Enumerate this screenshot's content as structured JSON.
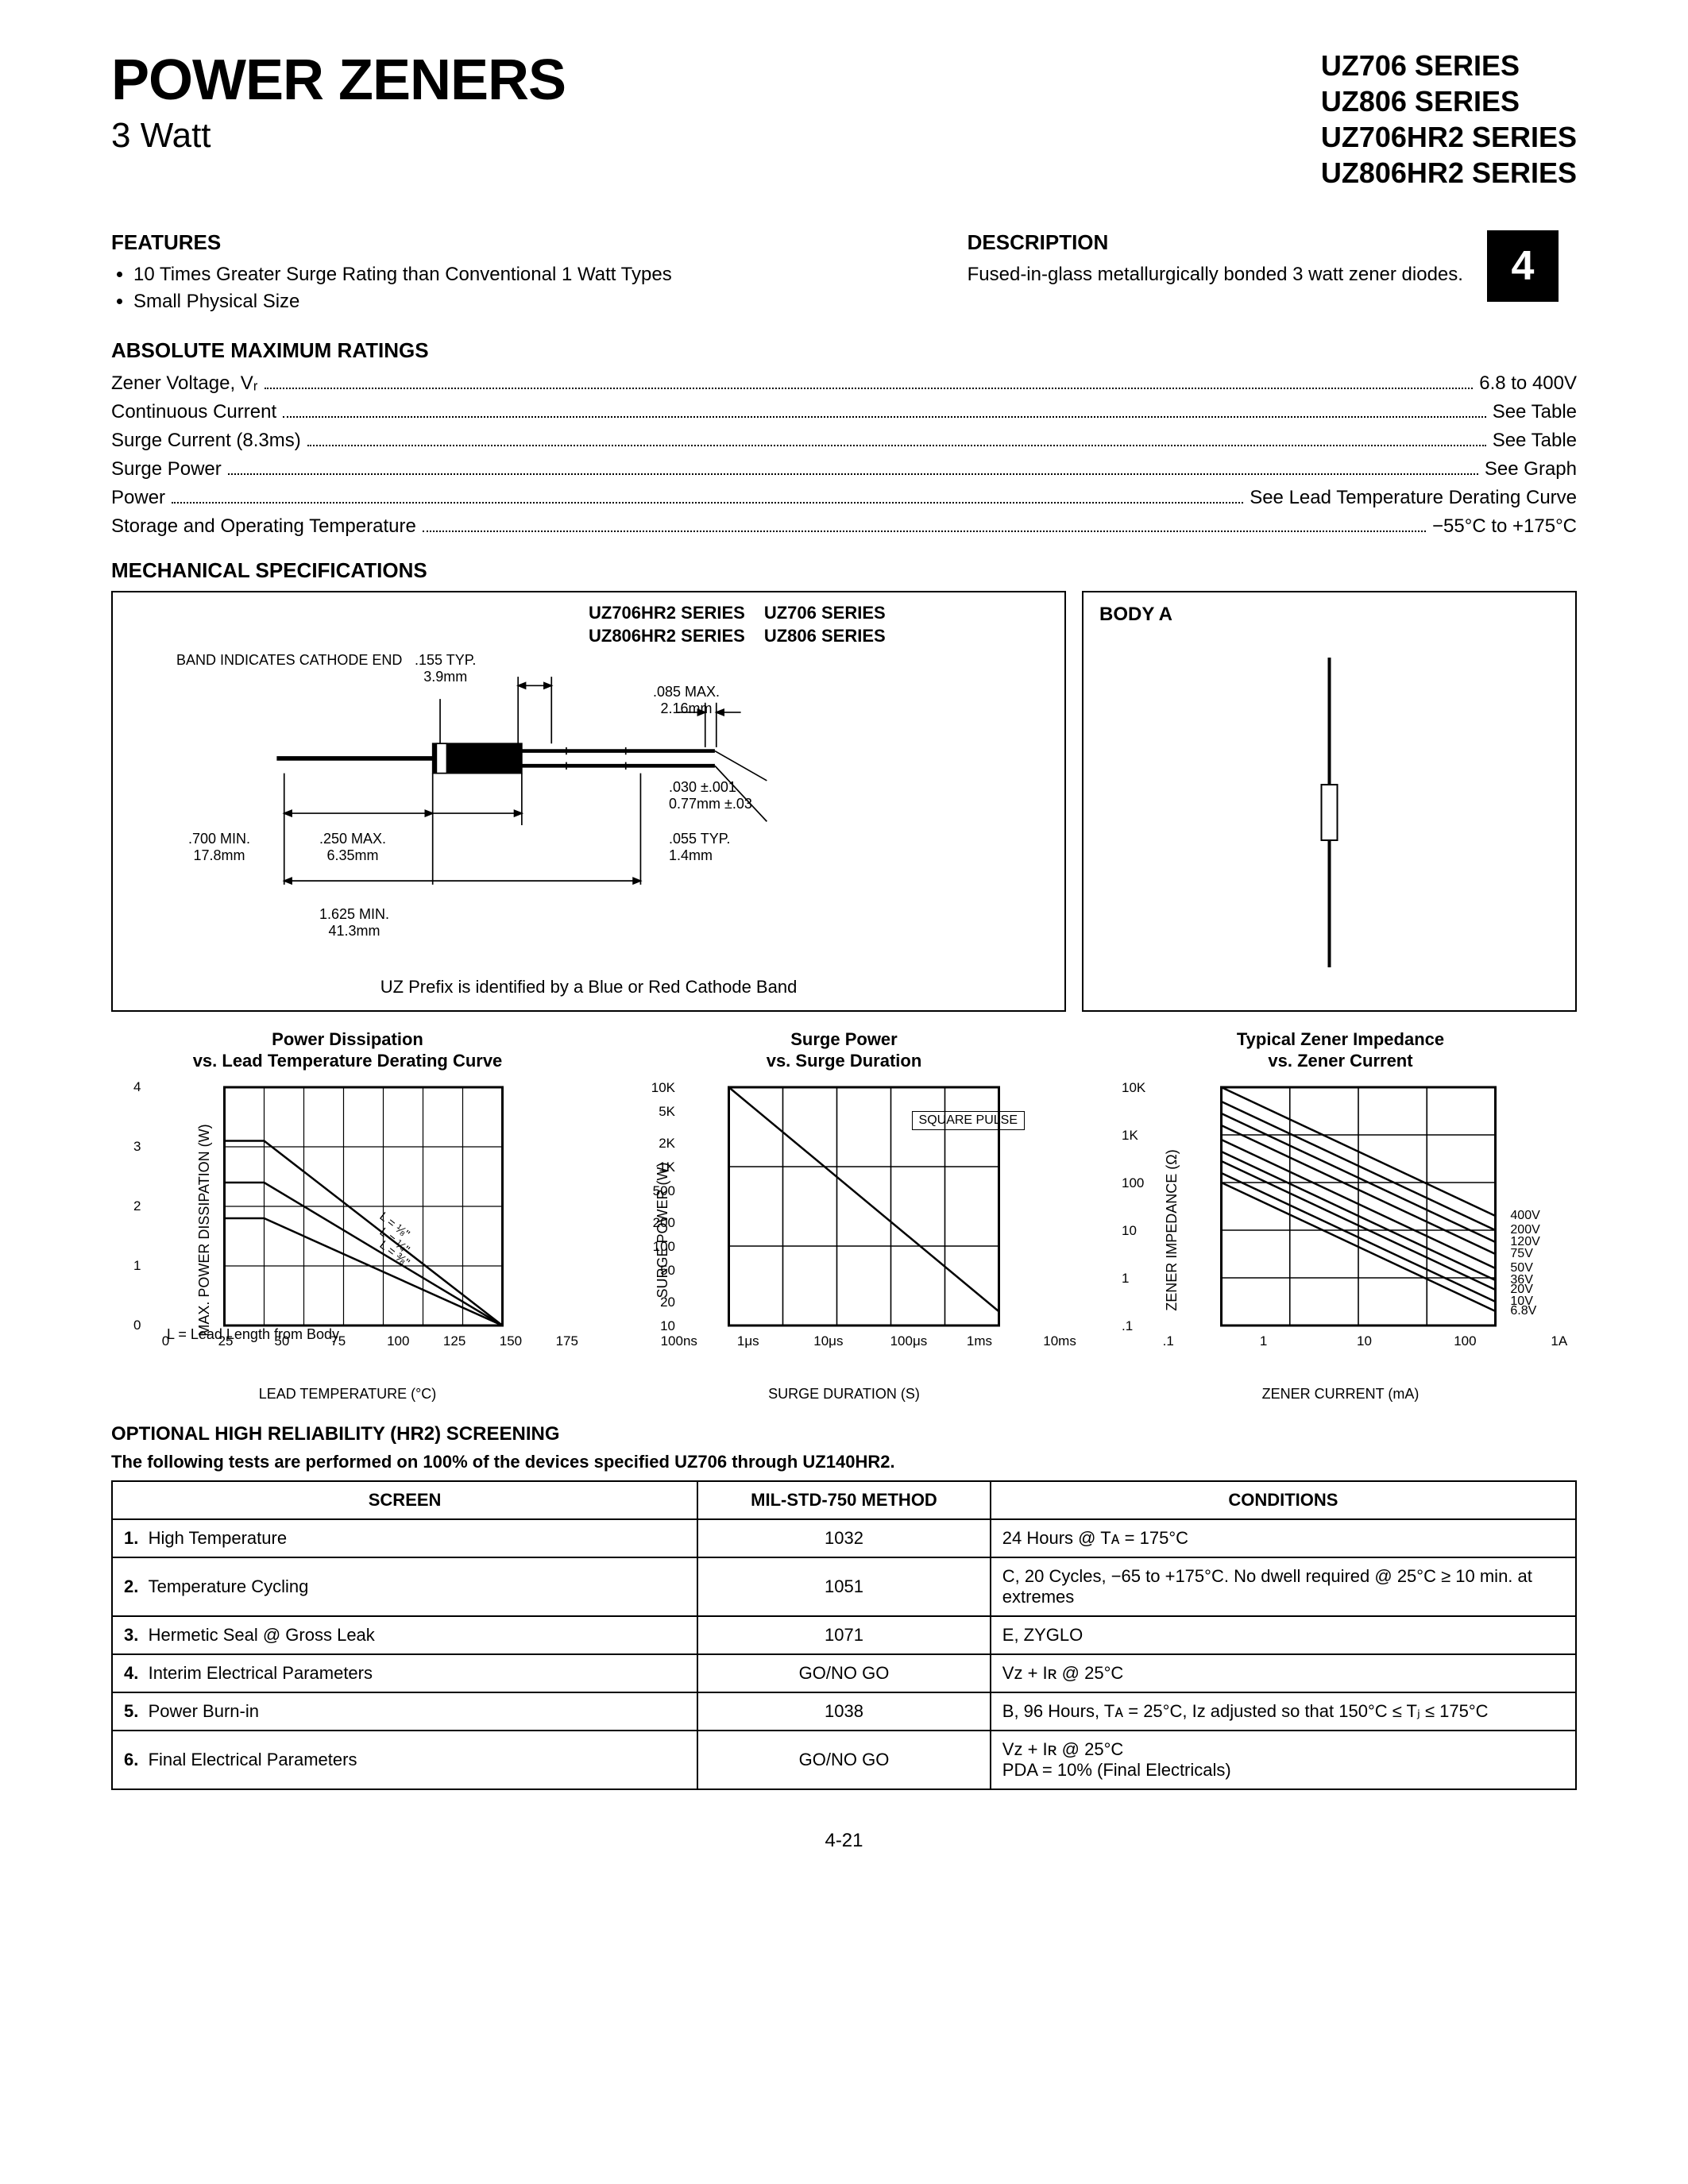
{
  "title": "POWER ZENERS",
  "subtitle": "3 Watt",
  "series": [
    "UZ706 SERIES",
    "UZ806 SERIES",
    "UZ706HR2 SERIES",
    "UZ806HR2 SERIES"
  ],
  "page_tab": "4",
  "page_number": "4-21",
  "features_heading": "FEATURES",
  "features": [
    "10 Times Greater Surge Rating than Conventional 1 Watt Types",
    "Small Physical Size"
  ],
  "description_heading": "DESCRIPTION",
  "description": "Fused-in-glass metallurgically bonded 3 watt zener diodes.",
  "ratings_heading": "ABSOLUTE MAXIMUM RATINGS",
  "ratings": [
    {
      "label": "Zener Voltage, Vᵣ",
      "value": "6.8 to 400V"
    },
    {
      "label": "Continuous Current",
      "value": "See Table"
    },
    {
      "label": "Surge Current (8.3ms)",
      "value": "See Table"
    },
    {
      "label": "Surge Power",
      "value": "See Graph"
    },
    {
      "label": "Power",
      "value": "See Lead Temperature Derating Curve"
    },
    {
      "label": "Storage and Operating Temperature",
      "value": "−55°C to +175°C"
    }
  ],
  "mech_heading": "MECHANICAL SPECIFICATIONS",
  "mech": {
    "series_left": "UZ706HR2 SERIES",
    "series_right": "UZ706 SERIES",
    "series2_left": "UZ806HR2 SERIES",
    "series2_right": "UZ806 SERIES",
    "band_label": "BAND INDICATES CATHODE END",
    "d155": ".155 TYP.\n3.9mm",
    "d085": ".085 MAX.\n2.16mm",
    "d030": ".030 ±.001\n0.77mm ±.03",
    "d055": ".055 TYP.\n1.4mm",
    "d700": ".700 MIN.\n17.8mm",
    "d250": ".250 MAX.\n6.35mm",
    "d1625": "1.625 MIN.\n41.3mm",
    "caption": "UZ Prefix is identified by a Blue or Red Cathode Band"
  },
  "body_a": {
    "label": "BODY A"
  },
  "charts": {
    "derating": {
      "title": "Power Dissipation\nvs. Lead Temperature Derating Curve",
      "ylabel": "MAX. POWER DISSIPATION (W)",
      "xlabel": "LEAD TEMPERATURE (°C)",
      "xticks": [
        "0",
        "25",
        "50",
        "75",
        "100",
        "125",
        "150",
        "175"
      ],
      "yticks": [
        "0",
        "1",
        "2",
        "3",
        "4"
      ],
      "xlim": [
        0,
        175
      ],
      "ylim": [
        0,
        4
      ],
      "curves_label": [
        "L = ⅛\"",
        "L = ¼\"",
        "L = ⅜\""
      ],
      "curves": [
        [
          [
            0,
            3.1
          ],
          [
            25,
            3.1
          ],
          [
            175,
            0
          ]
        ],
        [
          [
            0,
            2.4
          ],
          [
            25,
            2.4
          ],
          [
            175,
            0
          ]
        ],
        [
          [
            0,
            1.8
          ],
          [
            25,
            1.8
          ],
          [
            175,
            0
          ]
        ]
      ],
      "note": "L = Lead Length from Body"
    },
    "surge": {
      "title": "Surge Power\nvs. Surge Duration",
      "ylabel": "SURGE POWER (W)",
      "xlabel": "SURGE DURATION (S)",
      "xticks": [
        "100ns",
        "1μs",
        "10μs",
        "100μs",
        "1ms",
        "10ms"
      ],
      "yticks": [
        "10",
        "20",
        "50",
        "100",
        "200",
        "500",
        "1K",
        "2K",
        "5K",
        "10K"
      ],
      "xlog_decades": 5,
      "ylog_decades": 3,
      "square_pulse": "SQUARE PULSE",
      "line": [
        [
          0,
          10000
        ],
        [
          5,
          15
        ]
      ]
    },
    "impedance": {
      "title": "Typical Zener Impedance\nvs. Zener Current",
      "ylabel": "ZENER IMPEDANCE (Ω)",
      "xlabel": "ZENER CURRENT (mA)",
      "xticks": [
        ".1",
        "1",
        "10",
        "100",
        "1A"
      ],
      "yticks": [
        ".1",
        "1",
        "10",
        "100",
        "1K",
        "10K"
      ],
      "xlog_decades": 4,
      "ylog_decades": 5,
      "series_labels": [
        "400V",
        "200V",
        "120V",
        "75V",
        "50V",
        "36V",
        "20V",
        "10V",
        "6.8V"
      ],
      "lines": [
        [
          [
            0.0,
            4.0
          ],
          [
            4.0,
            1.3
          ]
        ],
        [
          [
            0.0,
            3.7
          ],
          [
            4.0,
            1.0
          ]
        ],
        [
          [
            0.0,
            3.45
          ],
          [
            4.0,
            0.75
          ]
        ],
        [
          [
            0.0,
            3.2
          ],
          [
            4.0,
            0.5
          ]
        ],
        [
          [
            0.0,
            2.9
          ],
          [
            4.0,
            0.2
          ]
        ],
        [
          [
            0.0,
            2.65
          ],
          [
            4.0,
            -0.05
          ]
        ],
        [
          [
            0.0,
            2.45
          ],
          [
            4.0,
            -0.25
          ]
        ],
        [
          [
            0.0,
            2.2
          ],
          [
            4.0,
            -0.5
          ]
        ],
        [
          [
            0.0,
            2.0
          ],
          [
            4.0,
            -0.7
          ]
        ]
      ]
    }
  },
  "hr2": {
    "heading": "OPTIONAL HIGH RELIABILITY (HR2) SCREENING",
    "subheading": "The following tests are performed on 100% of the devices specified UZ706 through UZ140HR2.",
    "cols": [
      "SCREEN",
      "MIL-STD-750 METHOD",
      "CONDITIONS"
    ],
    "rows": [
      {
        "n": "1.",
        "screen": "High Temperature",
        "method": "1032",
        "cond": "24 Hours @ Tᴀ = 175°C"
      },
      {
        "n": "2.",
        "screen": "Temperature Cycling",
        "method": "1051",
        "cond": "C, 20 Cycles, −65 to +175°C. No dwell required @ 25°C ≥ 10 min. at extremes"
      },
      {
        "n": "3.",
        "screen": "Hermetic Seal @ Gross Leak",
        "method": "1071",
        "cond": "E, ZYGLO"
      },
      {
        "n": "4.",
        "screen": "Interim Electrical Parameters",
        "method": "GO/NO GO",
        "cond": "Vᴢ + Iʀ @ 25°C"
      },
      {
        "n": "5.",
        "screen": "Power Burn-in",
        "method": "1038",
        "cond": "B, 96 Hours, Tᴀ = 25°C, Iᴢ adjusted so that 150°C ≤ Tⱼ ≤ 175°C"
      },
      {
        "n": "6.",
        "screen": "Final Electrical Parameters",
        "method": "GO/NO GO",
        "cond": "Vᴢ + Iʀ @ 25°C\nPDA = 10% (Final Electricals)"
      }
    ]
  },
  "colors": {
    "fg": "#000000",
    "bg": "#ffffff"
  }
}
